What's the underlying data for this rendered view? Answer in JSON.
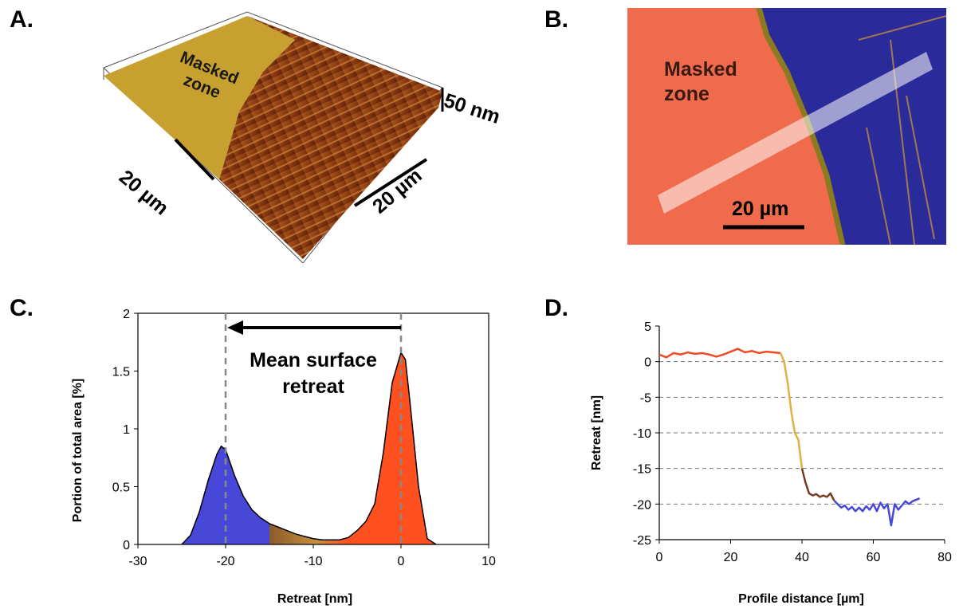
{
  "panels": {
    "a": {
      "label": "A.",
      "masked_zone": "Masked zone",
      "scale_x": "20 µm",
      "scale_y": "20 µm",
      "scale_z": "50 nm"
    },
    "b": {
      "label": "B.",
      "masked_zone": "Masked zone",
      "scale": "20 µm"
    },
    "c": {
      "label": "C.",
      "annotation": "Mean surface retreat"
    },
    "d": {
      "label": "D."
    }
  },
  "colors": {
    "masked_map": "#c8a030",
    "etched_map": "#8a3a10",
    "optical_orange": "#f06a4c",
    "optical_blue": "#2a2a9a",
    "hist_blue": "#4848d8",
    "hist_orange": "#ff5020",
    "hist_brown": "#8a5a2a",
    "profile_orange": "#f04a20",
    "profile_gold": "#e0b040",
    "profile_brown": "#7a3a20",
    "profile_blue": "#4848d8"
  },
  "chart_data": [
    {
      "type": "area",
      "xlabel": "Retreat [nm]",
      "ylabel": "Portion of total area [%]",
      "xlim": [
        -30,
        10
      ],
      "ylim": [
        0,
        2
      ],
      "xticks": [
        -30,
        -20,
        -10,
        0,
        10
      ],
      "yticks": [
        0,
        0.5,
        1,
        1.5,
        2
      ],
      "reference_lines": [
        -20,
        0
      ],
      "x": [
        -25,
        -24,
        -23,
        -22,
        -21,
        -20.5,
        -20,
        -19,
        -18,
        -17,
        -16,
        -15,
        -14,
        -13,
        -12,
        -11,
        -10,
        -9,
        -8,
        -7,
        -6,
        -5,
        -4,
        -3,
        -2,
        -1,
        0,
        0.5,
        1,
        2,
        3,
        4
      ],
      "values": [
        0,
        0.08,
        0.28,
        0.55,
        0.78,
        0.85,
        0.82,
        0.6,
        0.42,
        0.3,
        0.23,
        0.18,
        0.15,
        0.12,
        0.09,
        0.07,
        0.05,
        0.04,
        0.04,
        0.04,
        0.06,
        0.12,
        0.2,
        0.35,
        0.8,
        1.4,
        1.66,
        1.6,
        1.25,
        0.5,
        0.05,
        0
      ]
    },
    {
      "type": "line",
      "xlabel": "Profile distance [µm]",
      "ylabel": "Retreat [nm]",
      "xlim": [
        0,
        80
      ],
      "ylim": [
        -25,
        5
      ],
      "xticks": [
        0,
        20,
        40,
        60,
        80
      ],
      "yticks": [
        5,
        0,
        -5,
        -10,
        -15,
        -20,
        -25
      ],
      "x": [
        0,
        2,
        4,
        6,
        8,
        10,
        12,
        14,
        16,
        18,
        20,
        22,
        24,
        26,
        28,
        30,
        32,
        34,
        35,
        36,
        37,
        38,
        39,
        40,
        41,
        42,
        43,
        44,
        45,
        46,
        47,
        48,
        49,
        50,
        51,
        52,
        53,
        54,
        55,
        56,
        57,
        58,
        59,
        60,
        61,
        62,
        63,
        64,
        65,
        66,
        67,
        68,
        69,
        70,
        71,
        72,
        73
      ],
      "values": [
        1.0,
        0.6,
        1.2,
        1.0,
        1.3,
        1.1,
        1.2,
        1.0,
        0.7,
        1.0,
        1.4,
        1.8,
        1.3,
        1.5,
        1.2,
        1.4,
        1.3,
        1.2,
        0.0,
        -3.0,
        -7.0,
        -10.0,
        -11.0,
        -15.0,
        -17.0,
        -18.5,
        -18.8,
        -18.6,
        -19.0,
        -18.8,
        -19.0,
        -18.5,
        -19.5,
        -20.0,
        -20.5,
        -20.2,
        -20.8,
        -20.4,
        -21.0,
        -20.5,
        -21.0,
        -20.3,
        -20.8,
        -20.0,
        -21.0,
        -19.8,
        -20.6,
        -20.0,
        -23.0,
        -20.0,
        -20.8,
        -20.2,
        -19.6,
        -20.0,
        -19.6,
        -19.4,
        -19.2
      ],
      "segments": [
        {
          "from": 0,
          "to": 34,
          "color": "#f04a20"
        },
        {
          "from": 34,
          "to": 40,
          "color": "#e0b040"
        },
        {
          "from": 40,
          "to": 49,
          "color": "#7a3a20"
        },
        {
          "from": 49,
          "to": 73,
          "color": "#4848d8"
        }
      ]
    }
  ]
}
